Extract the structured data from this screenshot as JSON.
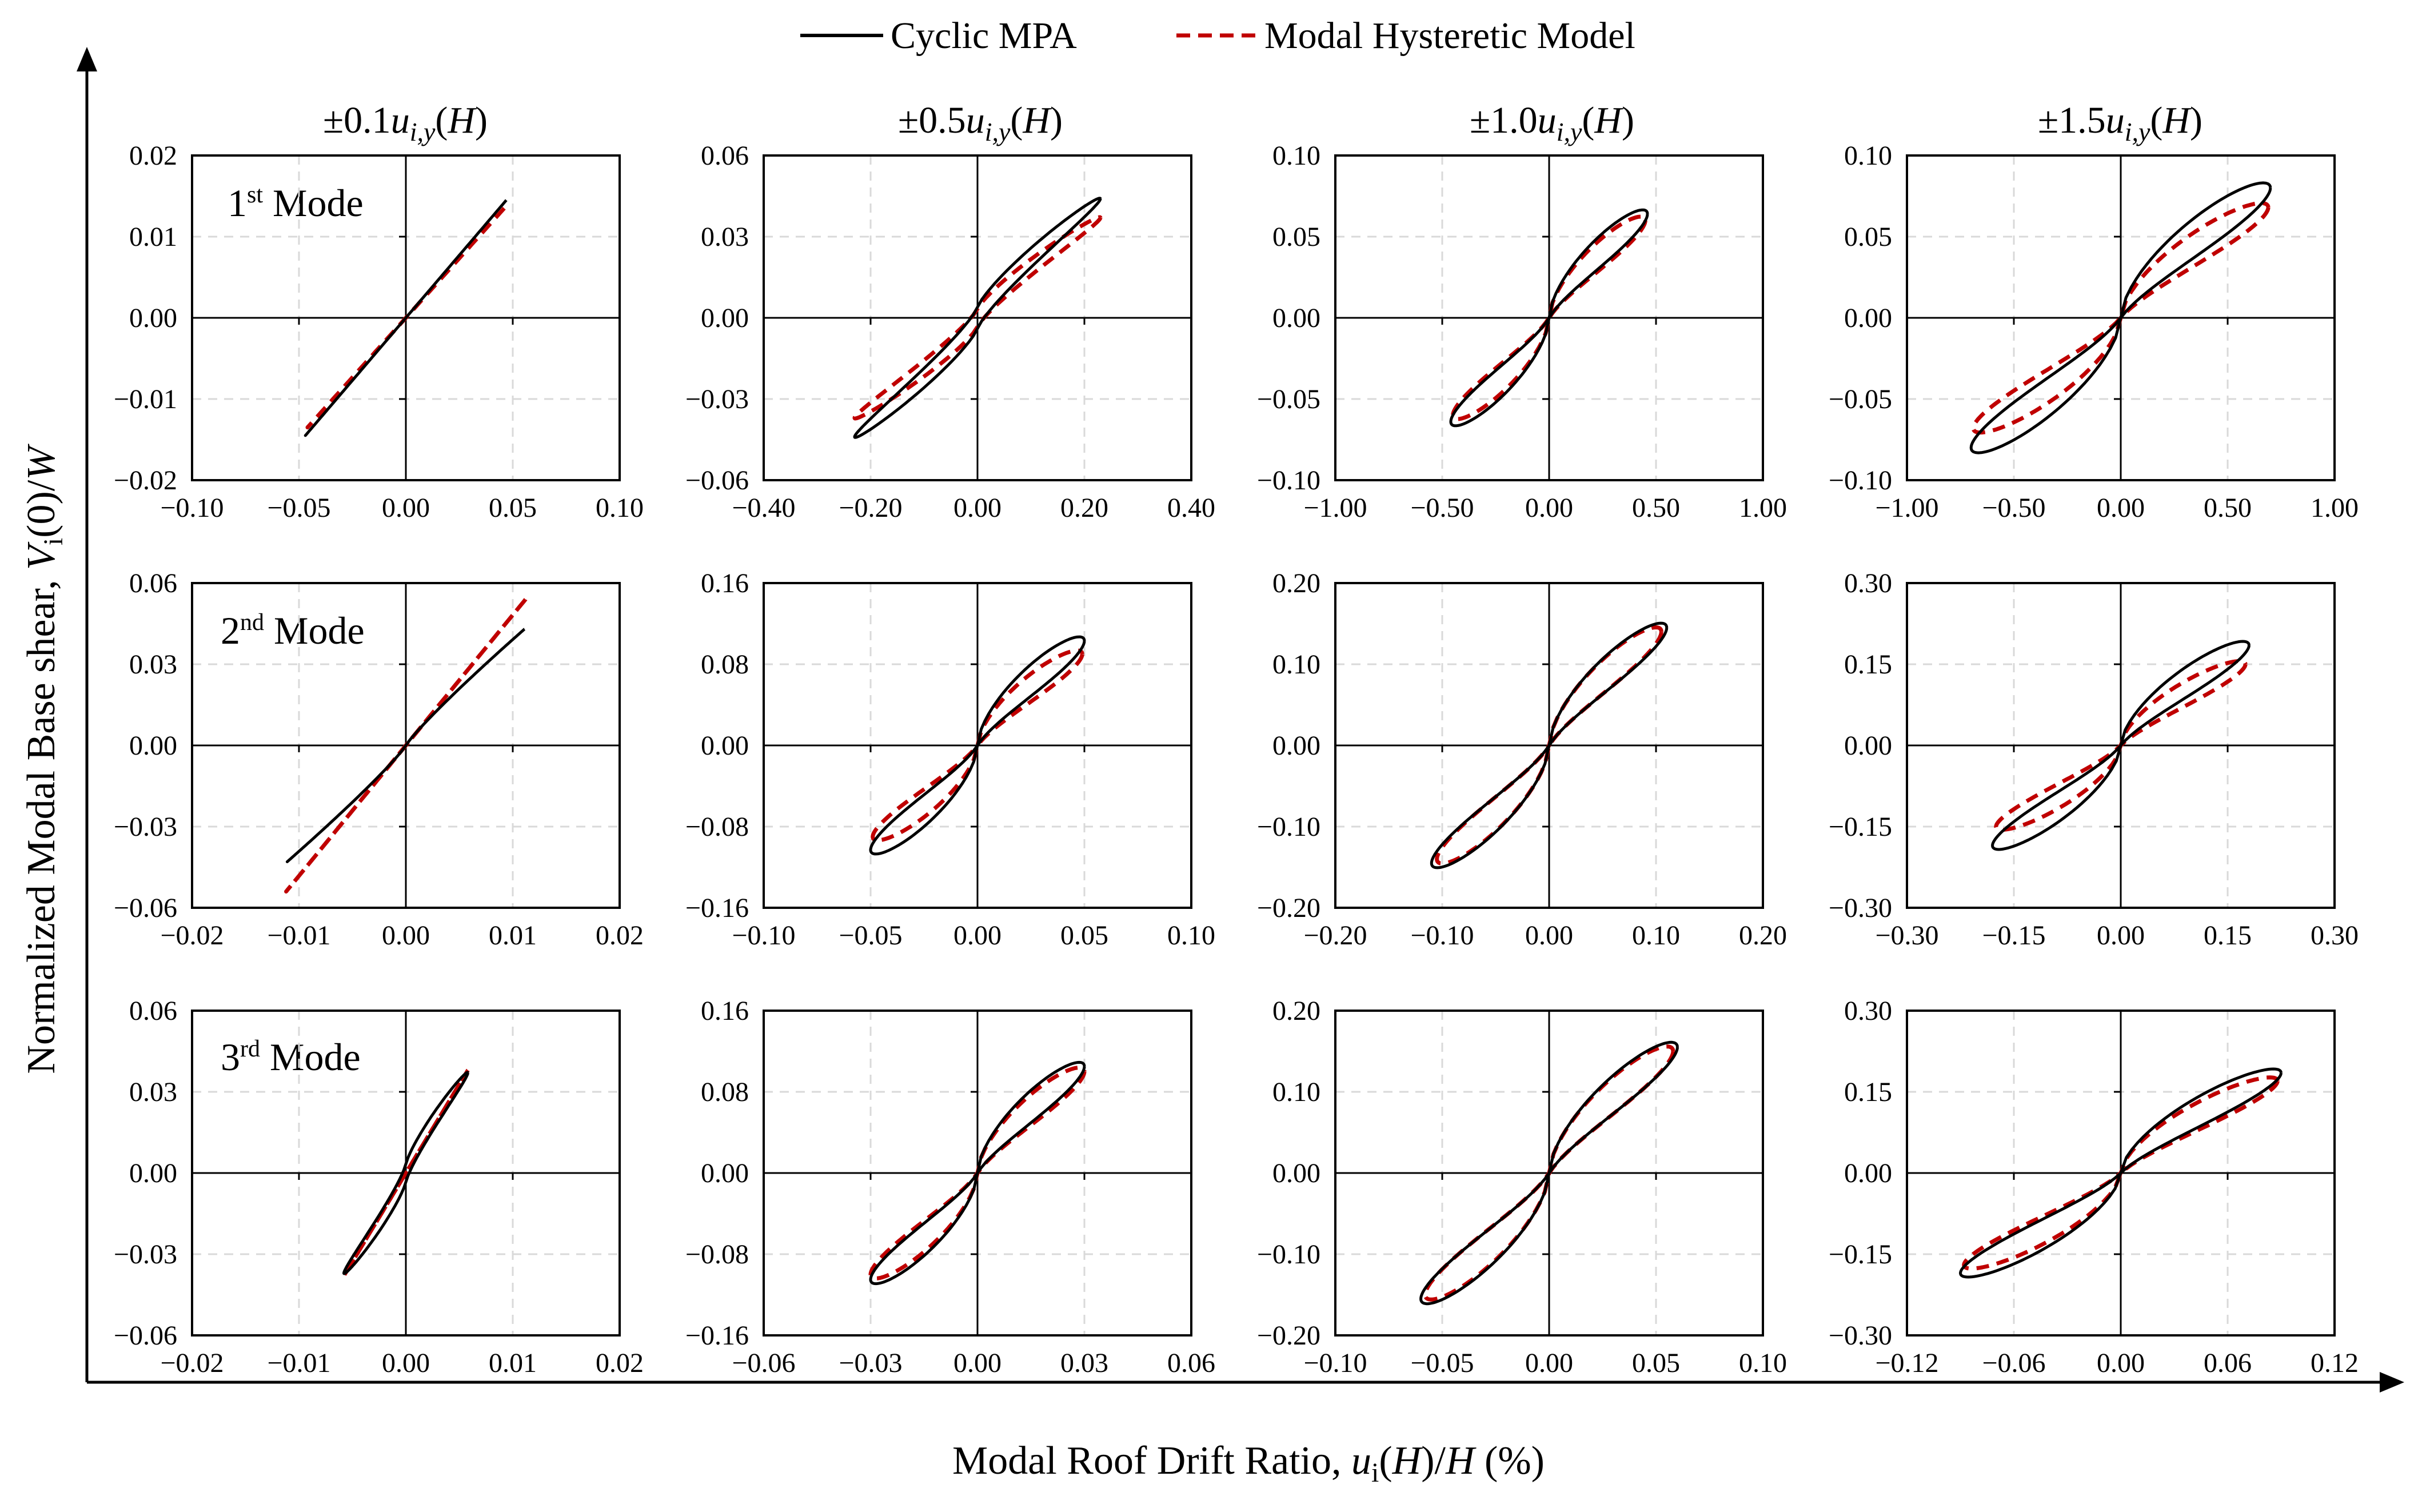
{
  "figure": {
    "y_axis_title_main": "Normalized Modal Base shear, ",
    "y_axis_title_var": "V",
    "y_axis_title_sub": "i",
    "y_axis_title_rest": "(0)/",
    "y_axis_title_W": "W",
    "x_axis_title_main": "Modal Roof Drift Ratio, ",
    "x_axis_title_var": "u",
    "x_axis_title_sub": "i",
    "x_axis_title_mid": "(",
    "x_axis_title_H1": "H",
    "x_axis_title_mid2": ")/",
    "x_axis_title_H2": "H",
    "x_axis_title_end": " (%)",
    "legend": {
      "cyclic": "Cyclic MPA",
      "modal": "Modal Hysteretic Model"
    },
    "column_titles": [
      {
        "prefix": "±0.1",
        "var": "u",
        "sub": "i,y",
        "open": "(",
        "H": "H",
        "close": ")"
      },
      {
        "prefix": "±0.5",
        "var": "u",
        "sub": "i,y",
        "open": "(",
        "H": "H",
        "close": ")"
      },
      {
        "prefix": "±1.0",
        "var": "u",
        "sub": "i,y",
        "open": "(",
        "H": "H",
        "close": ")"
      },
      {
        "prefix": "±1.5",
        "var": "u",
        "sub": "i,y",
        "open": "(",
        "H": "H",
        "close": ")"
      }
    ],
    "mode_labels": [
      {
        "num": "1",
        "sup": "st",
        "text": " Mode"
      },
      {
        "num": "2",
        "sup": "nd",
        "text": " Mode"
      },
      {
        "num": "3",
        "sup": "rd",
        "text": " Mode"
      }
    ],
    "colors": {
      "cyclic": "#000000",
      "modal": "#c00000",
      "grid": "#d9d9d9"
    }
  },
  "chart_data": [
    {
      "type": "line",
      "row": 0,
      "col": 0,
      "xlim": [
        -0.1,
        0.1
      ],
      "ylim": [
        -0.02,
        0.02
      ],
      "xticks": [
        "−0.10",
        "−0.05",
        "0.00",
        "0.05",
        "0.10"
      ],
      "yticks": [
        "0.02",
        "0.01",
        "0.00",
        "−0.01",
        "−0.02"
      ],
      "xmax": 0.047,
      "ymax": 0.0145,
      "shape": "linear",
      "modal": {
        "xmax": 0.046,
        "ymax": 0.0135,
        "shape": "linear"
      }
    },
    {
      "type": "line",
      "row": 0,
      "col": 1,
      "xlim": [
        -0.4,
        0.4
      ],
      "ylim": [
        -0.06,
        0.06
      ],
      "xticks": [
        "−0.40",
        "−0.20",
        "0.00",
        "0.20",
        "0.40"
      ],
      "yticks": [
        "0.06",
        "0.03",
        "0.00",
        "−0.03",
        "−0.06"
      ],
      "xmax": 0.23,
      "ymax": 0.044,
      "shape": "bulge",
      "modal": {
        "xmax": 0.23,
        "ymax": 0.037,
        "shape": "bulge"
      }
    },
    {
      "type": "line",
      "row": 0,
      "col": 2,
      "xlim": [
        -1.0,
        1.0
      ],
      "ylim": [
        -0.1,
        0.1
      ],
      "xticks": [
        "−1.00",
        "−0.50",
        "0.00",
        "0.50",
        "1.00"
      ],
      "yticks": [
        "0.10",
        "0.05",
        "0.00",
        "−0.05",
        "−0.10"
      ],
      "xmax": 0.46,
      "ymax": 0.064,
      "shape": "pinched",
      "modal": {
        "xmax": 0.45,
        "ymax": 0.06,
        "shape": "pinched"
      }
    },
    {
      "type": "line",
      "row": 0,
      "col": 3,
      "xlim": [
        -1.0,
        1.0
      ],
      "ylim": [
        -0.1,
        0.1
      ],
      "xticks": [
        "−1.00",
        "−0.50",
        "0.00",
        "0.50",
        "1.00"
      ],
      "yticks": [
        "0.10",
        "0.05",
        "0.00",
        "−0.05",
        "−0.10"
      ],
      "xmax": 0.7,
      "ymax": 0.08,
      "shape": "pinched",
      "modal": {
        "xmax": 0.69,
        "ymax": 0.068,
        "shape": "pinched"
      }
    },
    {
      "type": "line",
      "row": 1,
      "col": 0,
      "xlim": [
        -0.02,
        0.02
      ],
      "ylim": [
        -0.06,
        0.06
      ],
      "xticks": [
        "−0.02",
        "−0.01",
        "0.00",
        "0.01",
        "0.02"
      ],
      "yticks": [
        "0.06",
        "0.03",
        "0.00",
        "−0.03",
        "−0.06"
      ],
      "xmax": 0.0111,
      "ymax": 0.043,
      "shape": "softening",
      "modal": {
        "xmax": 0.0112,
        "ymax": 0.054,
        "shape": "linear"
      }
    },
    {
      "type": "line",
      "row": 1,
      "col": 1,
      "xlim": [
        -0.1,
        0.1
      ],
      "ylim": [
        -0.16,
        0.16
      ],
      "xticks": [
        "−0.10",
        "−0.05",
        "0.00",
        "0.05",
        "0.10"
      ],
      "yticks": [
        "0.16",
        "0.08",
        "0.00",
        "−0.08",
        "−0.16"
      ],
      "xmax": 0.05,
      "ymax": 0.103,
      "shape": "pinched",
      "modal": {
        "xmax": 0.049,
        "ymax": 0.09,
        "shape": "pinched"
      }
    },
    {
      "type": "line",
      "row": 1,
      "col": 2,
      "xlim": [
        -0.2,
        0.2
      ],
      "ylim": [
        -0.2,
        0.2
      ],
      "xticks": [
        "−0.20",
        "−0.10",
        "0.00",
        "0.10",
        "0.20"
      ],
      "yticks": [
        "0.20",
        "0.10",
        "0.00",
        "−0.10",
        "−0.20"
      ],
      "xmax": 0.11,
      "ymax": 0.145,
      "shape": "pinched",
      "modal": {
        "xmax": 0.105,
        "ymax": 0.14,
        "shape": "pinched"
      }
    },
    {
      "type": "line",
      "row": 1,
      "col": 3,
      "xlim": [
        -0.3,
        0.3
      ],
      "ylim": [
        -0.3,
        0.3
      ],
      "xticks": [
        "−0.30",
        "−0.15",
        "0.00",
        "0.15",
        "0.30"
      ],
      "yticks": [
        "0.30",
        "0.15",
        "0.00",
        "−0.15",
        "−0.30"
      ],
      "xmax": 0.18,
      "ymax": 0.185,
      "shape": "pinched",
      "modal": {
        "xmax": 0.175,
        "ymax": 0.15,
        "shape": "pinched"
      }
    },
    {
      "type": "line",
      "row": 2,
      "col": 0,
      "xlim": [
        -0.02,
        0.02
      ],
      "ylim": [
        -0.06,
        0.06
      ],
      "xticks": [
        "−0.02",
        "−0.01",
        "0.00",
        "0.01",
        "0.02"
      ],
      "yticks": [
        "0.06",
        "0.03",
        "0.00",
        "−0.03",
        "−0.06"
      ],
      "xmax": 0.0058,
      "ymax": 0.037,
      "shape": "bulge",
      "modal": {
        "xmax": 0.0058,
        "ymax": 0.038,
        "shape": "linear"
      }
    },
    {
      "type": "line",
      "row": 2,
      "col": 1,
      "xlim": [
        -0.06,
        0.06
      ],
      "ylim": [
        -0.16,
        0.16
      ],
      "xticks": [
        "−0.06",
        "−0.03",
        "0.00",
        "0.03",
        "0.06"
      ],
      "yticks": [
        "0.16",
        "0.08",
        "0.00",
        "−0.08",
        "−0.16"
      ],
      "xmax": 0.03,
      "ymax": 0.105,
      "shape": "pinched",
      "modal": {
        "xmax": 0.03,
        "ymax": 0.1,
        "shape": "pinched"
      }
    },
    {
      "type": "line",
      "row": 2,
      "col": 2,
      "xlim": [
        -0.1,
        0.1
      ],
      "ylim": [
        -0.2,
        0.2
      ],
      "xticks": [
        "−0.10",
        "−0.05",
        "0.00",
        "0.05",
        "0.10"
      ],
      "yticks": [
        "0.20",
        "0.10",
        "0.00",
        "−0.10",
        "−0.20"
      ],
      "xmax": 0.06,
      "ymax": 0.155,
      "shape": "pinched",
      "modal": {
        "xmax": 0.058,
        "ymax": 0.15,
        "shape": "pinched"
      }
    },
    {
      "type": "line",
      "row": 2,
      "col": 3,
      "xlim": [
        -0.12,
        0.12
      ],
      "ylim": [
        -0.3,
        0.3
      ],
      "xticks": [
        "−0.12",
        "−0.06",
        "0.00",
        "0.06",
        "0.12"
      ],
      "yticks": [
        "0.30",
        "0.15",
        "0.00",
        "−0.15",
        "−0.30"
      ],
      "xmax": 0.09,
      "ymax": 0.185,
      "shape": "pinched",
      "modal": {
        "xmax": 0.088,
        "ymax": 0.17,
        "shape": "pinched"
      }
    }
  ]
}
